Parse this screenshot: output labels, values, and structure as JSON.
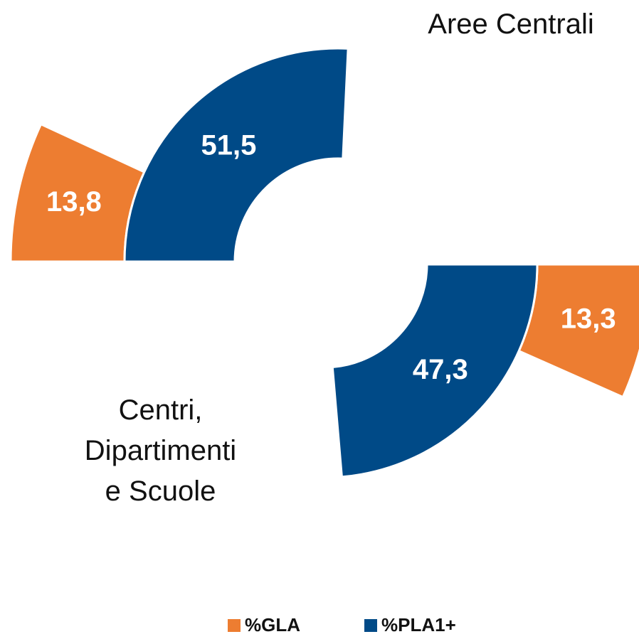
{
  "chart_data": {
    "type": "donut",
    "groups": [
      "Aree Centrali",
      "Centri, Dipartimenti e Scuole"
    ],
    "series": [
      {
        "name": "%GLA",
        "color": "#ed7d31",
        "values": [
          13.8,
          13.3
        ],
        "value_labels": [
          "13,8",
          "13,3"
        ]
      },
      {
        "name": "%PLA1+",
        "color": "#004a87",
        "values": [
          51.5,
          47.3
        ],
        "value_labels": [
          "51,5",
          "47,3"
        ]
      }
    ]
  }
}
